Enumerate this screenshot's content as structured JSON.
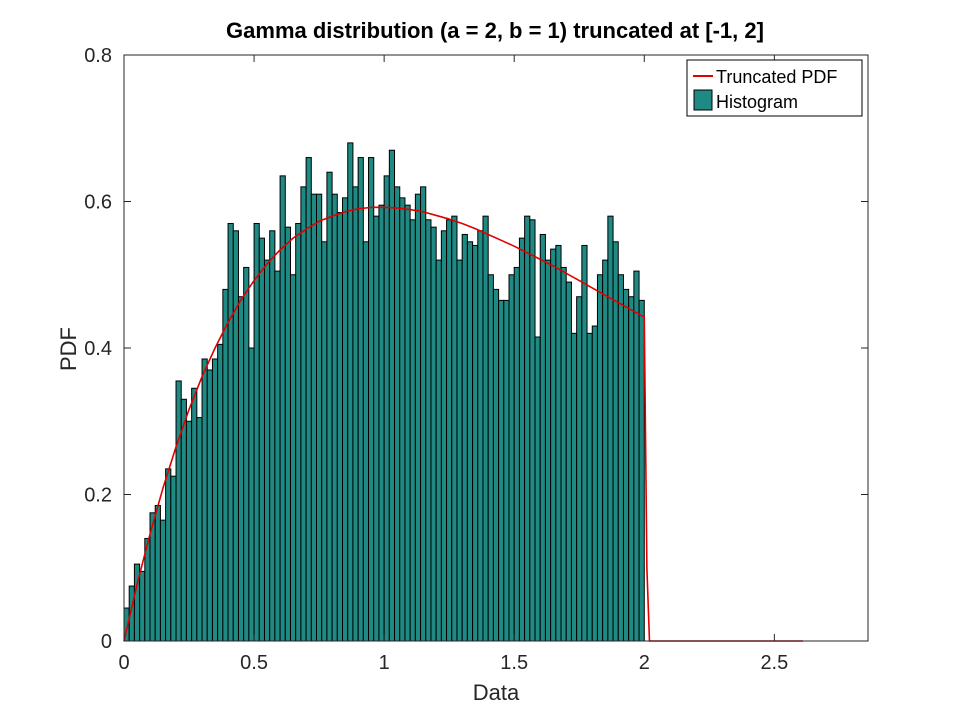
{
  "chart_data": {
    "type": "bar",
    "title": "Gamma distribution (a = 2, b = 1) truncated at [-1, 2]",
    "xlabel": "Data",
    "ylabel": "PDF",
    "xlim": [
      0,
      2.86
    ],
    "ylim": [
      0,
      0.8
    ],
    "x_ticks": [
      "0",
      "0.5",
      "1",
      "1.5",
      "2",
      "2.5"
    ],
    "y_ticks": [
      "0",
      "0.2",
      "0.4",
      "0.6",
      "0.8"
    ],
    "grid": false,
    "legend_position": "top-right",
    "legend": {
      "line_label": "Truncated PDF",
      "bar_label": "Histogram"
    },
    "colors": {
      "bar_fill": "#1f8a84",
      "bar_edge": "#000000",
      "pdf_line": "#e00000"
    },
    "histogram": {
      "bin_start": 0.0,
      "bin_width": 0.02,
      "values": [
        0.045,
        0.075,
        0.105,
        0.095,
        0.14,
        0.175,
        0.185,
        0.165,
        0.235,
        0.225,
        0.355,
        0.33,
        0.3,
        0.345,
        0.305,
        0.385,
        0.37,
        0.385,
        0.405,
        0.48,
        0.57,
        0.56,
        0.47,
        0.51,
        0.4,
        0.57,
        0.55,
        0.52,
        0.56,
        0.505,
        0.635,
        0.565,
        0.5,
        0.57,
        0.62,
        0.66,
        0.61,
        0.61,
        0.545,
        0.64,
        0.61,
        0.585,
        0.605,
        0.68,
        0.62,
        0.66,
        0.545,
        0.66,
        0.58,
        0.595,
        0.635,
        0.67,
        0.62,
        0.605,
        0.595,
        0.575,
        0.61,
        0.62,
        0.575,
        0.565,
        0.52,
        0.56,
        0.575,
        0.58,
        0.52,
        0.555,
        0.545,
        0.54,
        0.56,
        0.58,
        0.5,
        0.48,
        0.465,
        0.465,
        0.5,
        0.51,
        0.55,
        0.58,
        0.575,
        0.415,
        0.555,
        0.52,
        0.535,
        0.54,
        0.51,
        0.49,
        0.42,
        0.47,
        0.54,
        0.42,
        0.43,
        0.5,
        0.52,
        0.58,
        0.545,
        0.5,
        0.48,
        0.47,
        0.505,
        0.465
      ]
    },
    "series": [
      {
        "name": "Truncated PDF",
        "x": [
          0,
          0.05,
          0.1,
          0.15,
          0.2,
          0.25,
          0.3,
          0.35,
          0.4,
          0.45,
          0.5,
          0.55,
          0.6,
          0.65,
          0.7,
          0.75,
          0.8,
          0.85,
          0.9,
          0.95,
          1.0,
          1.05,
          1.1,
          1.15,
          1.2,
          1.25,
          1.3,
          1.35,
          1.4,
          1.45,
          1.5,
          1.55,
          1.6,
          1.65,
          1.7,
          1.75,
          1.8,
          1.85,
          1.9,
          1.95,
          2.0,
          2.01,
          2.02,
          2.61
        ],
        "y": [
          0,
          0.077,
          0.146,
          0.209,
          0.265,
          0.316,
          0.361,
          0.4,
          0.435,
          0.466,
          0.492,
          0.515,
          0.534,
          0.55,
          0.562,
          0.573,
          0.58,
          0.586,
          0.59,
          0.592,
          0.592,
          0.591,
          0.589,
          0.586,
          0.581,
          0.576,
          0.57,
          0.563,
          0.555,
          0.547,
          0.539,
          0.53,
          0.521,
          0.512,
          0.502,
          0.492,
          0.482,
          0.472,
          0.462,
          0.452,
          0.442,
          0.1,
          0,
          0
        ]
      }
    ]
  }
}
